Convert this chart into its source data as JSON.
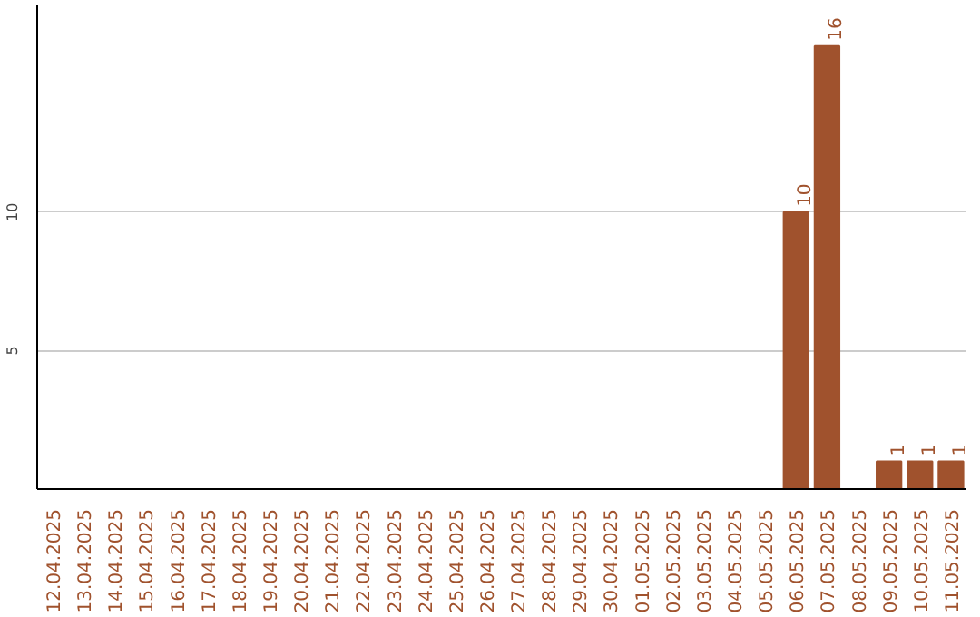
{
  "chart_data": {
    "type": "bar",
    "categories": [
      "12.04.2025",
      "13.04.2025",
      "14.04.2025",
      "15.04.2025",
      "16.04.2025",
      "17.04.2025",
      "18.04.2025",
      "19.04.2025",
      "20.04.2025",
      "21.04.2025",
      "22.04.2025",
      "23.04.2025",
      "24.04.2025",
      "25.04.2025",
      "26.04.2025",
      "27.04.2025",
      "28.04.2025",
      "29.04.2025",
      "30.04.2025",
      "01.05.2025",
      "02.05.2025",
      "03.05.2025",
      "04.05.2025",
      "05.05.2025",
      "06.05.2025",
      "07.05.2025",
      "08.05.2025",
      "09.05.2025",
      "10.05.2025",
      "11.05.2025"
    ],
    "values": [
      0,
      0,
      0,
      0,
      0,
      0,
      0,
      0,
      0,
      0,
      0,
      0,
      0,
      0,
      0,
      0,
      0,
      0,
      0,
      0,
      0,
      0,
      0,
      0,
      10,
      16,
      0,
      1,
      1,
      1
    ],
    "value_labels": [
      null,
      null,
      null,
      null,
      null,
      null,
      null,
      null,
      null,
      null,
      null,
      null,
      null,
      null,
      null,
      null,
      null,
      null,
      null,
      null,
      null,
      null,
      null,
      null,
      "10",
      "16",
      null,
      "1",
      "1",
      "1"
    ],
    "color": "#a0522d",
    "ylim": [
      0,
      17.5
    ],
    "yticks": [
      5,
      10
    ],
    "grid": "y"
  }
}
